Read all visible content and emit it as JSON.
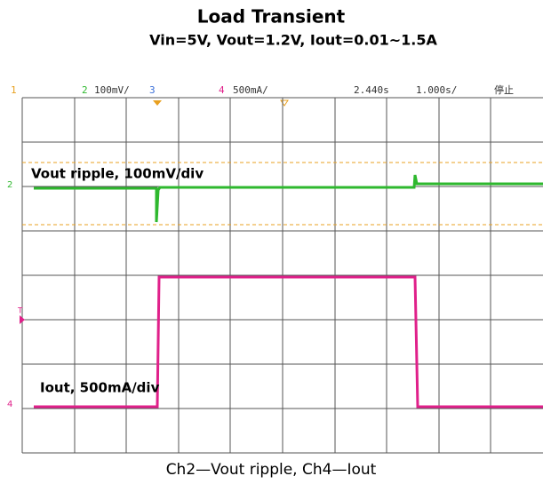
{
  "title": "Load Transient",
  "subtitle": "Vin=5V, Vout=1.2V, Iout=0.01~1.5A",
  "scope": {
    "header": {
      "ch1": "1",
      "ch2": "2",
      "ch2_scale": "100mV/",
      "ch3": "3",
      "ch4": "4",
      "ch4_scale": "500mA/",
      "delay": "2.440s",
      "timebase": "1.000s/",
      "status": "停止"
    },
    "markers": {
      "ch2": "2",
      "ch4": "4",
      "trigger": "T"
    },
    "trace_labels": {
      "vout": "Vout ripple, 100mV/div",
      "iout": "Iout, 500mA/div"
    }
  },
  "caption": "Ch2—Vout ripple, Ch4—Iout"
}
